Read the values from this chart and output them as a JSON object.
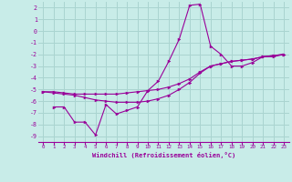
{
  "background_color": "#c8ece8",
  "grid_color": "#aad4d0",
  "line_color": "#990099",
  "xlabel": "Windchill (Refroidissement éolien,°C)",
  "xlabel_color": "#990099",
  "tick_color": "#990099",
  "xlim": [
    -0.5,
    23.5
  ],
  "ylim": [
    -9.5,
    2.5
  ],
  "xticks": [
    0,
    1,
    2,
    3,
    4,
    5,
    6,
    7,
    8,
    9,
    10,
    11,
    12,
    13,
    14,
    15,
    16,
    17,
    18,
    19,
    20,
    21,
    22,
    23
  ],
  "yticks": [
    -9,
    -8,
    -7,
    -6,
    -5,
    -4,
    -3,
    -2,
    -1,
    0,
    1,
    2
  ],
  "line1_x": [
    0,
    1,
    2,
    3,
    4,
    5,
    6,
    7,
    8,
    9,
    10,
    11,
    12,
    13,
    14,
    15,
    16,
    17,
    18,
    19,
    20,
    21,
    22,
    23
  ],
  "line1_y": [
    -5.2,
    -5.2,
    -5.3,
    -5.4,
    -5.4,
    -5.4,
    -5.4,
    -5.4,
    -5.3,
    -5.2,
    -5.1,
    -5.0,
    -4.8,
    -4.5,
    -4.1,
    -3.5,
    -3.0,
    -2.8,
    -2.6,
    -2.5,
    -2.4,
    -2.2,
    -2.1,
    -2.0
  ],
  "line2_x": [
    0,
    1,
    2,
    3,
    4,
    5,
    6,
    7,
    8,
    9,
    10,
    11,
    12,
    13,
    14,
    15,
    16,
    17,
    18,
    19,
    20,
    21,
    22,
    23
  ],
  "line2_y": [
    -5.2,
    -5.3,
    -5.4,
    -5.5,
    -5.7,
    -5.9,
    -6.0,
    -6.1,
    -6.1,
    -6.1,
    -6.0,
    -5.8,
    -5.5,
    -5.0,
    -4.4,
    -3.6,
    -3.0,
    -2.8,
    -2.6,
    -2.5,
    -2.4,
    -2.2,
    -2.1,
    -2.0
  ],
  "line3_x": [
    1,
    2,
    3,
    4,
    5,
    6,
    7,
    8,
    9,
    10,
    11,
    12,
    13,
    14,
    15,
    16,
    17,
    18,
    19,
    20,
    21,
    22,
    23
  ],
  "line3_y": [
    -6.5,
    -6.5,
    -7.8,
    -7.8,
    -8.9,
    -6.3,
    -7.1,
    -6.8,
    -6.5,
    -5.1,
    -4.3,
    -2.6,
    -0.7,
    2.2,
    2.3,
    -1.3,
    -2.0,
    -3.0,
    -3.0,
    -2.7,
    -2.2,
    -2.2,
    -2.0
  ]
}
